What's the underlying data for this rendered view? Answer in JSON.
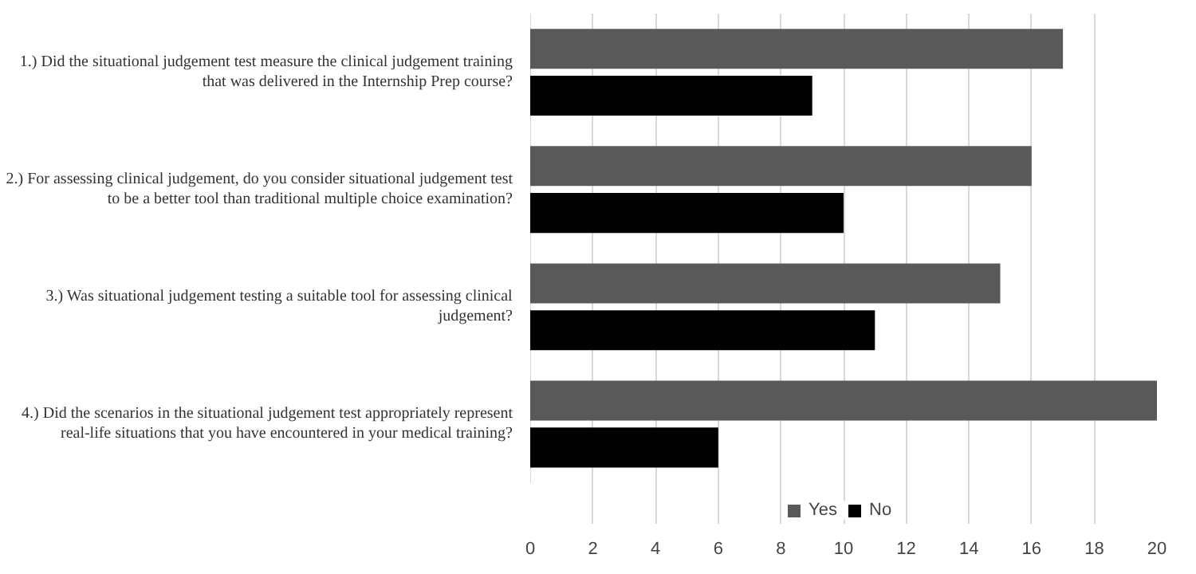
{
  "chart_data": {
    "type": "bar",
    "orientation": "horizontal",
    "categories": [
      "1.) Did the situational judgement test measure the clinical judgement training that was delivered in the Internship Prep course?",
      "2.) For assessing clinical judgement, do you consider situational judgement test to be a better tool than traditional multiple choice examination?",
      "3.) Was situational judgement testing a suitable tool for assessing clinical judgement?",
      "4.) Did the scenarios in the situational judgement test appropriately represent real-life situations that you have encountered in your medical training?"
    ],
    "series": [
      {
        "name": "Yes",
        "color": "#595959",
        "values": [
          17,
          16,
          15,
          20
        ]
      },
      {
        "name": "No",
        "color": "#000000",
        "values": [
          9,
          10,
          11,
          6
        ]
      }
    ],
    "xlim": [
      0,
      20
    ],
    "xticks": [
      0,
      2,
      4,
      6,
      8,
      10,
      12,
      14,
      16,
      18,
      20
    ],
    "grid": "x",
    "legend": "bottom"
  }
}
